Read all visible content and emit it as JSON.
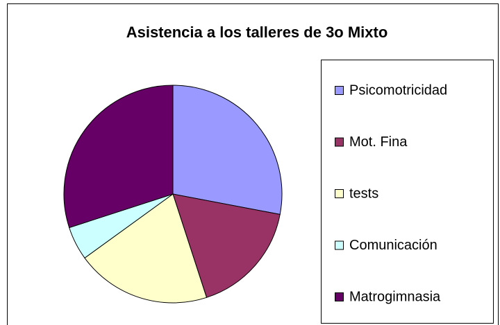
{
  "chart_data": {
    "type": "pie",
    "title": "Asistencia a los talleres de 3o Mixto",
    "categories": [
      "Psicomotricidad",
      "Mot. Fina",
      "tests",
      "Comunicación",
      "Matrogimnasia"
    ],
    "values": [
      28,
      17,
      20,
      5,
      30
    ],
    "colors": [
      "#9999ff",
      "#993366",
      "#ffffcc",
      "#ccffff",
      "#660066"
    ],
    "legend": "right"
  }
}
